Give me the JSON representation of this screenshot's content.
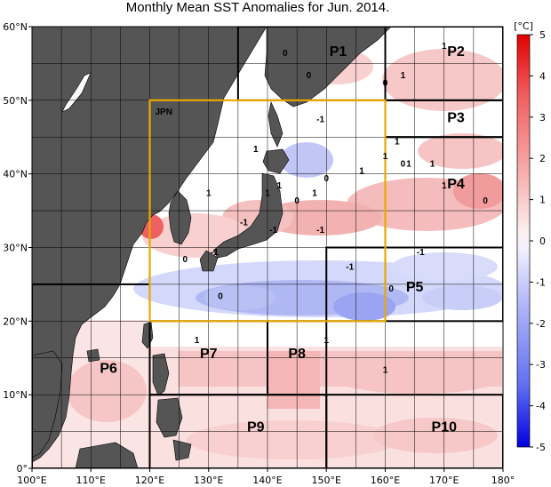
{
  "title": "Monthly Mean SST Anomalies for Jun. 2014.",
  "map": {
    "lon_range": [
      100,
      180
    ],
    "lat_range": [
      0,
      60
    ],
    "lon_ticks": [
      {
        "v": 100,
        "label": "100°E"
      },
      {
        "v": 110,
        "label": "110°E"
      },
      {
        "v": 120,
        "label": "120°E"
      },
      {
        "v": 130,
        "label": "130°E"
      },
      {
        "v": 140,
        "label": "140°E"
      },
      {
        "v": 150,
        "label": "150°E"
      },
      {
        "v": 160,
        "label": "160°E"
      },
      {
        "v": 170,
        "label": "170°E"
      },
      {
        "v": 180,
        "label": "180°"
      }
    ],
    "lat_ticks": [
      {
        "v": 0,
        "label": "0°"
      },
      {
        "v": 10,
        "label": "10°N"
      },
      {
        "v": 20,
        "label": "20°N"
      },
      {
        "v": 30,
        "label": "30°N"
      },
      {
        "v": 40,
        "label": "40°N"
      },
      {
        "v": 50,
        "label": "50°N"
      },
      {
        "v": 60,
        "label": "60°N"
      }
    ],
    "colors": {
      "land": "#555555",
      "ocean": "#ffffff",
      "jpn_box": "#e8a800",
      "warm": "#ee4444",
      "cool": "#3344ee"
    }
  },
  "colorbar": {
    "unit": "[°C]",
    "ticks": [
      {
        "v": 5,
        "label": "5"
      },
      {
        "v": 4,
        "label": "4"
      },
      {
        "v": 3,
        "label": "3"
      },
      {
        "v": 2,
        "label": "2"
      },
      {
        "v": 1,
        "label": "1"
      },
      {
        "v": 0,
        "label": "0"
      },
      {
        "v": -1,
        "label": "-1"
      },
      {
        "v": -2,
        "label": "-2"
      },
      {
        "v": -3,
        "label": "-3"
      },
      {
        "v": -4,
        "label": "-4"
      },
      {
        "v": -5,
        "label": "-5"
      }
    ]
  },
  "jpn_box": {
    "label": "JPN",
    "lon": [
      120,
      160
    ],
    "lat": [
      20,
      50
    ]
  },
  "regions": [
    {
      "name": "P1",
      "lon": [
        135,
        160
      ],
      "lat": [
        50,
        60
      ],
      "label_at": [
        152,
        56
      ]
    },
    {
      "name": "P2",
      "lon": [
        160,
        180
      ],
      "lat": [
        50,
        60
      ],
      "label_at": [
        172,
        56
      ]
    },
    {
      "name": "P3",
      "lon": [
        160,
        180
      ],
      "lat": [
        45,
        50
      ],
      "label_at": [
        172,
        47
      ]
    },
    {
      "name": "P4",
      "lon": [
        160,
        180
      ],
      "lat": [
        30,
        45
      ],
      "label_at": [
        172,
        38
      ]
    },
    {
      "name": "P5",
      "lon": [
        150,
        180
      ],
      "lat": [
        20,
        30
      ],
      "label_at": [
        165,
        24
      ]
    },
    {
      "name": "P6",
      "lon": [
        100,
        120
      ],
      "lat": [
        0,
        25
      ],
      "label_at": [
        113,
        13
      ]
    },
    {
      "name": "P7",
      "lon": [
        120,
        140
      ],
      "lat": [
        10,
        20
      ],
      "label_at": [
        130,
        15
      ]
    },
    {
      "name": "P8",
      "lon": [
        140,
        150
      ],
      "lat": [
        10,
        20
      ],
      "label_at": [
        145,
        15
      ]
    },
    {
      "name": "P9",
      "lon": [
        120,
        150
      ],
      "lat": [
        0,
        10
      ],
      "label_at": [
        138,
        5
      ]
    },
    {
      "name": "P10",
      "lon": [
        150,
        180
      ],
      "lat": [
        0,
        10
      ],
      "label_at": [
        170,
        5
      ]
    }
  ],
  "contour_labels": [
    {
      "t": "0",
      "lon": 143,
      "lat": 56
    },
    {
      "t": "0",
      "lon": 147,
      "lat": 53
    },
    {
      "t": "0",
      "lon": 160,
      "lat": 52
    },
    {
      "t": "1",
      "lon": 170,
      "lat": 57
    },
    {
      "t": "1",
      "lon": 163,
      "lat": 53
    },
    {
      "t": "-1",
      "lon": 149,
      "lat": 47
    },
    {
      "t": "1",
      "lon": 162,
      "lat": 44
    },
    {
      "t": "1",
      "lon": 164,
      "lat": 41
    },
    {
      "t": "0",
      "lon": 163,
      "lat": 41
    },
    {
      "t": "1",
      "lon": 168,
      "lat": 41
    },
    {
      "t": "1",
      "lon": 160,
      "lat": 42
    },
    {
      "t": "1",
      "lon": 138,
      "lat": 43
    },
    {
      "t": "1",
      "lon": 130,
      "lat": 37
    },
    {
      "t": "0",
      "lon": 150,
      "lat": 39
    },
    {
      "t": "1",
      "lon": 148,
      "lat": 37
    },
    {
      "t": "0",
      "lon": 145,
      "lat": 36
    },
    {
      "t": "1",
      "lon": 142,
      "lat": 38
    },
    {
      "t": "1",
      "lon": 156,
      "lat": 40
    },
    {
      "t": "1",
      "lon": 170,
      "lat": 38
    },
    {
      "t": "0",
      "lon": 177,
      "lat": 36
    },
    {
      "t": "1",
      "lon": 140,
      "lat": 37
    },
    {
      "t": "-1",
      "lon": 136,
      "lat": 33
    },
    {
      "t": "-1",
      "lon": 141,
      "lat": 32
    },
    {
      "t": "-1",
      "lon": 149,
      "lat": 32
    },
    {
      "t": "-1",
      "lon": 131,
      "lat": 29
    },
    {
      "t": "-1",
      "lon": 166,
      "lat": 29
    },
    {
      "t": "-1",
      "lon": 154,
      "lat": 27
    },
    {
      "t": "0",
      "lon": 161,
      "lat": 24
    },
    {
      "t": "0",
      "lon": 132,
      "lat": 23
    },
    {
      "t": "0",
      "lon": 126,
      "lat": 28
    },
    {
      "t": "1",
      "lon": 128,
      "lat": 17
    },
    {
      "t": "1",
      "lon": 150,
      "lat": 17
    },
    {
      "t": "1",
      "lon": 160,
      "lat": 13
    }
  ]
}
